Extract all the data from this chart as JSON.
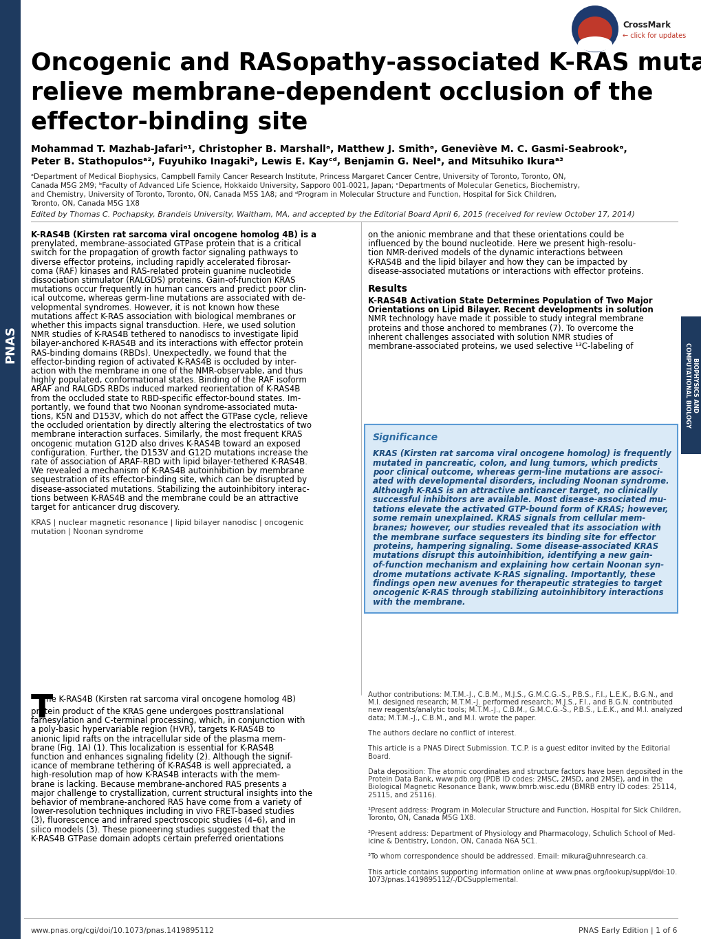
{
  "title_line1": "Oncogenic and RASopathy-associated K-RAS mutations",
  "title_line2": "relieve membrane-dependent occlusion of the",
  "title_line3": "effector-binding site",
  "authors_line1": "Mohammad T. Mazhab-Jafariᵃ¹, Christopher B. Marshallᵃ, Matthew J. Smithᵃ, Geneviève M. C. Gasmi-Seabrookᵃ,",
  "authors_line2": "Peter B. Stathopulosᵃ², Fuyuhiko Inagakiᵇ, Lewis E. Kayᶜᵈ, Benjamin G. Neelᵃ, and Mitsuhiko Ikuraᵃ³",
  "aff1": "ᵃDepartment of Medical Biophysics, Campbell Family Cancer Research Institute, Princess Margaret Cancer Centre, University of Toronto, Toronto, ON,",
  "aff2": "Canada M5G 2M9; ᵇFaculty of Advanced Life Science, Hokkaido University, Sapporo 001-0021, Japan; ᶜDepartments of Molecular Genetics, Biochemistry,",
  "aff3": "and Chemistry, University of Toronto, Toronto, ON, Canada M5S 1A8; and ᵈProgram in Molecular Structure and Function, Hospital for Sick Children,",
  "aff4": "Toronto, ON, Canada M5G 1X8",
  "edited_by": "Edited by Thomas C. Pochapsky, Brandeis University, Waltham, MA, and accepted by the Editorial Board April 6, 2015 (received for review October 17, 2014)",
  "col1_lines": [
    "K-RAS4B (Kirsten rat sarcoma viral oncogene homolog 4B) is a",
    "prenylated, membrane-associated GTPase protein that is a critical",
    "switch for the propagation of growth factor signaling pathways to",
    "diverse effector proteins, including rapidly accelerated fibrosar-",
    "coma (RAF) kinases and RAS-related protein guanine nucleotide",
    "dissociation stimulator (RALGDS) proteins. Gain-of-function KRAS",
    "mutations occur frequently in human cancers and predict poor clin-",
    "ical outcome, whereas germ-line mutations are associated with de-",
    "velopmental syndromes. However, it is not known how these",
    "mutations affect K-RAS association with biological membranes or",
    "whether this impacts signal transduction. Here, we used solution",
    "NMR studies of K-RAS4B tethered to nanodiscs to investigate lipid",
    "bilayer-anchored K-RAS4B and its interactions with effector protein",
    "RAS-binding domains (RBDs). Unexpectedly, we found that the",
    "effector-binding region of activated K-RAS4B is occluded by inter-",
    "action with the membrane in one of the NMR-observable, and thus",
    "highly populated, conformational states. Binding of the RAF isoform",
    "ARAF and RALGDS RBDs induced marked reorientation of K-RAS4B",
    "from the occluded state to RBD-specific effector-bound states. Im-",
    "portantly, we found that two Noonan syndrome-associated muta-",
    "tions, K5N and D153V, which do not affect the GTPase cycle, relieve",
    "the occluded orientation by directly altering the electrostatics of two",
    "membrane interaction surfaces. Similarly, the most frequent KRAS",
    "oncogenic mutation G12D also drives K-RAS4B toward an exposed",
    "configuration. Further, the D153V and G12D mutations increase the",
    "rate of association of ARAF-RBD with lipid bilayer-tethered K-RAS4B.",
    "We revealed a mechanism of K-RAS4B autoinhibition by membrane",
    "sequestration of its effector-binding site, which can be disrupted by",
    "disease-associated mutations. Stabilizing the autoinhibitory interac-",
    "tions between K-RAS4B and the membrane could be an attractive",
    "target for anticancer drug discovery."
  ],
  "keywords_line1": "KRAS | nuclear magnetic resonance | lipid bilayer nanodisc | oncogenic",
  "keywords_line2": "mutation | Noonan syndrome",
  "col2_top_lines": [
    "on the anionic membrane and that these orientations could be",
    "influenced by the bound nucleotide. Here we present high-resolu-",
    "tion NMR-derived models of the dynamic interactions between",
    "K-RAS4B and the lipid bilayer and how they can be impacted by",
    "disease-associated mutations or interactions with effector proteins."
  ],
  "results_label": "Results",
  "results_sub1": "K-RAS4B Activation State Determines Population of Two Major",
  "results_sub2": "Orientations on Lipid Bilayer.",
  "results_body_lines": [
    "Recent developments in solution",
    "NMR technology have made it possible to study integral membrane",
    "proteins and those anchored to membranes (7). To overcome the",
    "inherent challenges associated with solution NMR studies of",
    "membrane-associated proteins, we used selective ¹³C-labeling of"
  ],
  "sig_title": "Significance",
  "sig_lines": [
    "KRAS (Kirsten rat sarcoma viral oncogene homolog) is frequently",
    "mutated in pancreatic, colon, and lung tumors, which predicts",
    "poor clinical outcome, whereas germ-line mutations are associ-",
    "ated with developmental disorders, including Noonan syndrome.",
    "Although K-RAS is an attractive anticancer target, no clinically",
    "successful inhibitors are available. Most disease-associated mu-",
    "tations elevate the activated GTP-bound form of KRAS; however,",
    "some remain unexplained. KRAS signals from cellular mem-",
    "branes; however, our studies revealed that its association with",
    "the membrane surface sequesters its binding site for effector",
    "proteins, hampering signaling. Some disease-associated KRAS",
    "mutations disrupt this autoinhibition, identifying a new gain-",
    "of-function mechanism and explaining how certain Noonan syn-",
    "drome mutations activate K-RAS signaling. Importantly, these",
    "findings open new avenues for therapeutic strategies to target",
    "oncogenic K-RAS through stabilizing autoinhibitory interactions",
    "with the membrane."
  ],
  "body_dropcap": "T",
  "body_col1_lines": [
    "he K-RAS4B (Kirsten rat sarcoma viral oncogene homolog 4B)",
    "protein product of the KRAS gene undergoes posttranslational",
    "farnesylation and C-terminal processing, which, in conjunction with",
    "a poly-basic hypervariable region (HVR), targets K-RAS4B to",
    "anionic lipid rafts on the intracellular side of the plasma mem-",
    "brane (Fig. 1A) (1). This localization is essential for K-RAS4B",
    "function and enhances signaling fidelity (2). Although the signif-",
    "icance of membrane tethering of K-RAS4B is well appreciated, a",
    "high-resolution map of how K-RAS4B interacts with the mem-",
    "brane is lacking. Because membrane-anchored RAS presents a",
    "major challenge to crystallization, current structural insights into the",
    "behavior of membrane-anchored RAS have come from a variety of",
    "lower-resolution techniques including in vivo FRET-based studies",
    "(3), fluorescence and infrared spectroscopic studies (4–6), and in",
    "silico models (3). These pioneering studies suggested that the",
    "K-RAS4B GTPase domain adopts certain preferred orientations"
  ],
  "auth_lines": [
    "Author contributions: M.T.M.-J., C.B.M., M.J.S., G.M.C.G.-S., P.B.S., F.I., L.E.K., B.G.N., and",
    "M.I. designed research; M.T.M.-J. performed research; M.J.S., F.I., and B.G.N. contributed",
    "new reagents/analytic tools; M.T.M.-J., C.B.M., G.M.C.G.-S., P.B.S., L.E.K., and M.I. analyzed",
    "data; M.T.M.-J., C.B.M., and M.I. wrote the paper.",
    "",
    "The authors declare no conflict of interest.",
    "",
    "This article is a PNAS Direct Submission. T.C.P. is a guest editor invited by the Editorial",
    "Board.",
    "",
    "Data deposition: The atomic coordinates and structure factors have been deposited in the",
    "Protein Data Bank, www.pdb.org (PDB ID codes: 2MSC, 2MSD, and 2MSE), and in the",
    "Biological Magnetic Resonance Bank, www.bmrb.wisc.edu (BMRB entry ID codes: 25114,",
    "25115, and 25116).",
    "",
    "¹Present address: Program in Molecular Structure and Function, Hospital for Sick Children,",
    "Toronto, ON, Canada M5G 1X8.",
    "",
    "²Present address: Department of Physiology and Pharmacology, Schulich School of Med-",
    "icine & Dentistry, London, ON, Canada N6A 5C1.",
    "",
    "³To whom correspondence should be addressed. Email: mikura@uhnresearch.ca.",
    "",
    "This article contains supporting information online at www.pnas.org/lookup/suppl/doi:10.",
    "1073/pnas.1419895112/-/DCSupplemental."
  ],
  "footer_left": "www.pnas.org/cgi/doi/10.1073/pnas.1419895112",
  "footer_right": "PNAS Early Edition | 1 of 6",
  "bg_color": "#ffffff",
  "sidebar_color": "#1e3a5f",
  "sig_bg": "#daeaf7",
  "sig_border": "#5b9bd5",
  "sig_title_color": "#2e6da4",
  "sig_body_color": "#1a4a7a"
}
